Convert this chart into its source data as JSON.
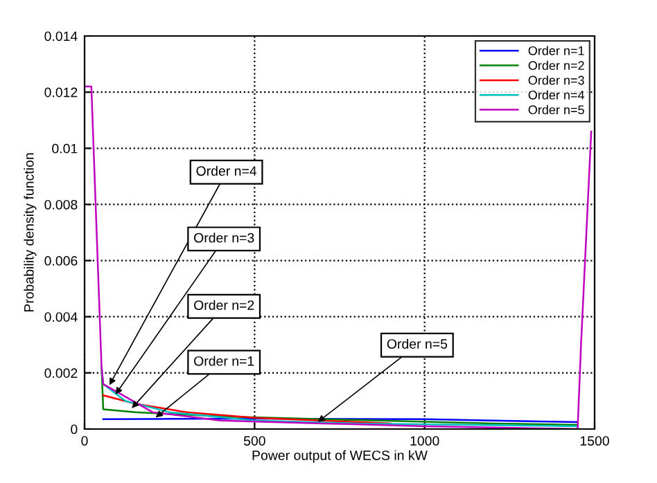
{
  "chart_data": {
    "type": "line",
    "xlabel": "Power output of WECS in kW",
    "ylabel": "Probability density function",
    "xlim": [
      0,
      1500
    ],
    "ylim": [
      0,
      0.014
    ],
    "xticks": [
      0,
      500,
      1000,
      1500
    ],
    "yticks": [
      0,
      0.002,
      0.004,
      0.006,
      0.008,
      0.01,
      0.012,
      0.014
    ],
    "grid": true,
    "legend": "top right",
    "line_style": "solid",
    "marker": "none",
    "series": [
      {
        "name": "Order n=1",
        "color": "#0000ff",
        "x": [
          55,
          200,
          500,
          1000,
          1200,
          1450
        ],
        "values": [
          0.00035,
          0.00036,
          0.00037,
          0.00035,
          0.0003,
          0.00025
        ]
      },
      {
        "name": "Order n=2",
        "color": "#008000",
        "x": [
          50,
          55,
          150,
          400,
          700,
          1200,
          1450
        ],
        "values": [
          0.0022,
          0.0007,
          0.0006,
          0.00045,
          0.00035,
          0.0002,
          0.00015
        ]
      },
      {
        "name": "Order n=3",
        "color": "#ff0000",
        "x": [
          55,
          150,
          300,
          500,
          900
        ],
        "values": [
          0.0012,
          0.0009,
          0.0006,
          0.0004,
          0.0002
        ]
      },
      {
        "name": "Order n=4",
        "color": "#00bfbf",
        "x": [
          50,
          55,
          120,
          250,
          500,
          800,
          1450
        ],
        "values": [
          0.0022,
          0.0016,
          0.001,
          0.0006,
          0.0003,
          0.0002,
          0.0001
        ]
      },
      {
        "name": "Order n=5",
        "color": "#bf00bf",
        "x": [
          0,
          20,
          50,
          55,
          200,
          400,
          700,
          1000,
          1450,
          1460,
          1490
        ],
        "values": [
          0.0122,
          0.0122,
          0.0022,
          0.0016,
          0.0006,
          0.0003,
          0.0002,
          0.0001,
          0.0,
          0.003,
          0.0106
        ]
      }
    ],
    "annotations": [
      {
        "text": "Order n=4",
        "x": 73,
        "y": 0.00156
      },
      {
        "text": "Order n=3",
        "x": 91,
        "y": 0.00123
      },
      {
        "text": "Order n=2",
        "x": 139,
        "y": 0.00074
      },
      {
        "text": "Order n=1",
        "x": 209,
        "y": 0.00041
      },
      {
        "text": "Order n=5",
        "x": 686,
        "y": 0.00025
      }
    ]
  }
}
